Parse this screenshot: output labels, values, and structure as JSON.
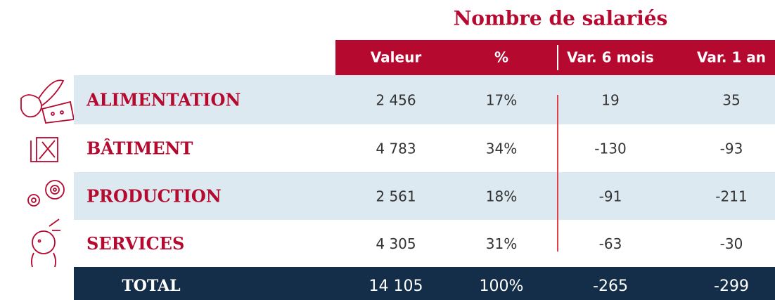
{
  "title": "Nombre de salariés",
  "table": {
    "header": [
      "Valeur",
      "%",
      "Var. 6 mois",
      "Var. 1 an"
    ],
    "rows": [
      [
        "ALIMENTATION",
        "2 456",
        "17%",
        "19",
        "35"
      ],
      [
        "BÂTIMENT",
        "4 783",
        "34%",
        "-130",
        "-93"
      ],
      [
        "PRODUCTION",
        "2 561",
        "18%",
        "-91",
        "-211"
      ],
      [
        "SERVICES",
        "4 305",
        "31%",
        "-63",
        "-30"
      ]
    ],
    "total": [
      "TOTAL",
      "14 105",
      "100%",
      "-265",
      "-299"
    ]
  }
}
